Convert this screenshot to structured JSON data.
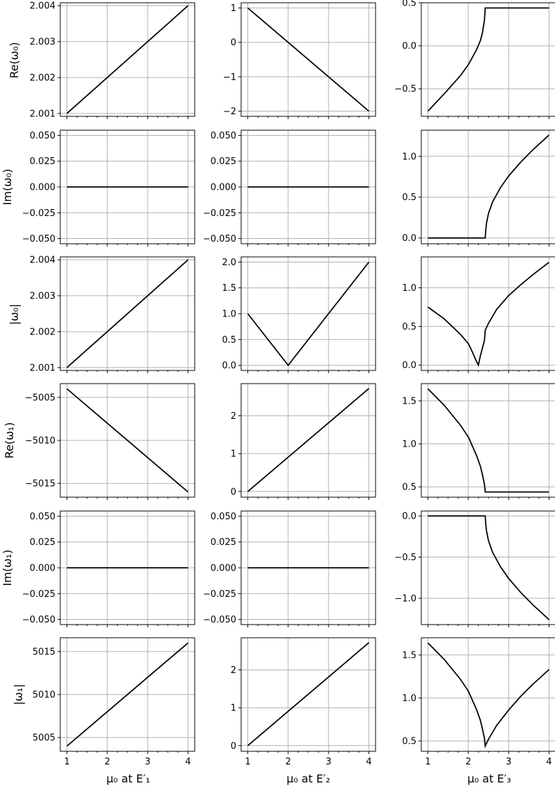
{
  "figure": {
    "row_labels": [
      "Re(ω₀)",
      "Im(ω₀)",
      "|ω₀|",
      "Re(ω₁)",
      "Im(ω₁)",
      "|ω₁|"
    ],
    "col_labels": [
      "μ₀ at E′₁",
      "μ₀ at E′₂",
      "μ₀ at E′₃"
    ]
  },
  "chart_data": [
    {
      "type": "line",
      "row": 0,
      "col": 0,
      "ylabel": "Re(ω₀)",
      "xlim": [
        1,
        4
      ],
      "xticks": [
        1,
        2,
        3,
        4
      ],
      "ylim": [
        2.00092,
        2.00408
      ],
      "yticks": [
        2.001,
        2.002,
        2.003,
        2.004
      ],
      "yticklabels": [
        "2.001",
        "2.002",
        "2.003",
        "2.004"
      ],
      "grid": true,
      "x": [
        1,
        4
      ],
      "y": [
        2.001,
        2.004
      ]
    },
    {
      "type": "line",
      "row": 0,
      "col": 1,
      "xlim": [
        1,
        4
      ],
      "xticks": [
        1,
        2,
        3,
        4
      ],
      "ylim": [
        -2.15,
        1.15
      ],
      "yticks": [
        -2,
        -1,
        0,
        1
      ],
      "yticklabels": [
        "−2",
        "−1",
        "0",
        "1"
      ],
      "grid": true,
      "x": [
        1,
        4
      ],
      "y": [
        1,
        -2
      ]
    },
    {
      "type": "line",
      "row": 0,
      "col": 2,
      "xlim": [
        1,
        4
      ],
      "xticks": [
        1,
        2,
        3,
        4
      ],
      "ylim": [
        -0.82,
        0.5
      ],
      "yticks": [
        -0.5,
        0.0,
        0.5
      ],
      "yticklabels": [
        "−0.5",
        "0.0",
        "0.5"
      ],
      "grid": true,
      "x": [
        1,
        1.4,
        1.8,
        2.0,
        2.2,
        2.3,
        2.35,
        2.4,
        2.42,
        4
      ],
      "y": [
        -0.76,
        -0.56,
        -0.35,
        -0.22,
        -0.05,
        0.06,
        0.15,
        0.3,
        0.44,
        0.44
      ]
    },
    {
      "type": "line",
      "row": 1,
      "col": 0,
      "ylabel": "Im(ω₀)",
      "xlim": [
        1,
        4
      ],
      "xticks": [
        1,
        2,
        3,
        4
      ],
      "ylim": [
        -0.055,
        0.055
      ],
      "yticks": [
        -0.05,
        -0.025,
        0.0,
        0.025,
        0.05
      ],
      "yticklabels": [
        "−0.050",
        "−0.025",
        "0.000",
        "0.025",
        "0.050"
      ],
      "grid": true,
      "x": [
        1,
        4
      ],
      "y": [
        0,
        0
      ]
    },
    {
      "type": "line",
      "row": 1,
      "col": 1,
      "xlim": [
        1,
        4
      ],
      "xticks": [
        1,
        2,
        3,
        4
      ],
      "ylim": [
        -0.055,
        0.055
      ],
      "yticks": [
        -0.05,
        -0.025,
        0.0,
        0.025,
        0.05
      ],
      "yticklabels": [
        "−0.050",
        "−0.025",
        "0.000",
        "0.025",
        "0.050"
      ],
      "grid": true,
      "x": [
        1,
        4
      ],
      "y": [
        0,
        0
      ]
    },
    {
      "type": "line",
      "row": 1,
      "col": 2,
      "xlim": [
        1,
        4
      ],
      "xticks": [
        1,
        2,
        3,
        4
      ],
      "ylim": [
        -0.07,
        1.32
      ],
      "yticks": [
        0.0,
        0.5,
        1.0
      ],
      "yticklabels": [
        "0.0",
        "0.5",
        "1.0"
      ],
      "grid": true,
      "x": [
        1,
        2.42,
        2.43,
        2.45,
        2.5,
        2.6,
        2.8,
        3.0,
        3.3,
        3.6,
        4.0
      ],
      "y": [
        0,
        0,
        0.08,
        0.18,
        0.3,
        0.44,
        0.62,
        0.76,
        0.93,
        1.08,
        1.26
      ]
    },
    {
      "type": "line",
      "row": 2,
      "col": 0,
      "ylabel": "|ω₀|",
      "xlim": [
        1,
        4
      ],
      "xticks": [
        1,
        2,
        3,
        4
      ],
      "ylim": [
        2.00092,
        2.00408
      ],
      "yticks": [
        2.001,
        2.002,
        2.003,
        2.004
      ],
      "yticklabels": [
        "2.001",
        "2.002",
        "2.003",
        "2.004"
      ],
      "grid": true,
      "x": [
        1,
        4
      ],
      "y": [
        2.001,
        2.004
      ]
    },
    {
      "type": "line",
      "row": 2,
      "col": 1,
      "xlim": [
        1,
        4
      ],
      "xticks": [
        1,
        2,
        3,
        4
      ],
      "ylim": [
        -0.1,
        2.1
      ],
      "yticks": [
        0,
        0.5,
        1,
        1.5,
        2
      ],
      "yticklabels": [
        "0.0",
        "0.5",
        "1.0",
        "1.5",
        "2.0"
      ],
      "grid": true,
      "x": [
        1,
        2,
        4
      ],
      "y": [
        1,
        0,
        2
      ]
    },
    {
      "type": "line",
      "row": 2,
      "col": 2,
      "xlim": [
        1,
        4
      ],
      "xticks": [
        1,
        2,
        3,
        4
      ],
      "ylim": [
        -0.07,
        1.4
      ],
      "yticks": [
        0.0,
        0.5,
        1.0
      ],
      "yticklabels": [
        "0.0",
        "0.5",
        "1.0"
      ],
      "grid": true,
      "x": [
        1,
        1.4,
        1.8,
        2.0,
        2.1,
        2.2,
        2.25,
        2.3,
        2.35,
        2.4,
        2.42,
        2.5,
        2.7,
        3.0,
        3.3,
        3.6,
        4.0
      ],
      "y": [
        0.75,
        0.6,
        0.4,
        0.28,
        0.17,
        0.05,
        0.0,
        0.12,
        0.22,
        0.32,
        0.45,
        0.54,
        0.72,
        0.9,
        1.04,
        1.17,
        1.33
      ]
    },
    {
      "type": "line",
      "row": 3,
      "col": 0,
      "ylabel": "Re(ω₁)",
      "xlim": [
        1,
        4
      ],
      "xticks": [
        1,
        2,
        3,
        4
      ],
      "ylim": [
        -5016.6,
        -5003.4
      ],
      "yticks": [
        -5015,
        -5010,
        -5005
      ],
      "yticklabels": [
        "−5015",
        "−5010",
        "−5005"
      ],
      "grid": true,
      "x": [
        1,
        4
      ],
      "y": [
        -5004,
        -5016
      ]
    },
    {
      "type": "line",
      "row": 3,
      "col": 1,
      "xlim": [
        1,
        4
      ],
      "xticks": [
        1,
        2,
        3,
        4
      ],
      "ylim": [
        -0.15,
        2.85
      ],
      "yticks": [
        0,
        1,
        2
      ],
      "yticklabels": [
        "0",
        "1",
        "2"
      ],
      "grid": true,
      "x": [
        1,
        4
      ],
      "y": [
        0,
        2.72
      ]
    },
    {
      "type": "line",
      "row": 3,
      "col": 2,
      "xlim": [
        1,
        4
      ],
      "xticks": [
        1,
        2,
        3,
        4
      ],
      "ylim": [
        0.38,
        1.7
      ],
      "yticks": [
        0.5,
        1.0,
        1.5
      ],
      "yticklabels": [
        "0.5",
        "1.0",
        "1.5"
      ],
      "grid": true,
      "x": [
        1,
        1.4,
        1.8,
        2.0,
        2.2,
        2.3,
        2.35,
        2.4,
        2.42,
        4
      ],
      "y": [
        1.64,
        1.45,
        1.22,
        1.08,
        0.87,
        0.74,
        0.64,
        0.53,
        0.44,
        0.44
      ]
    },
    {
      "type": "line",
      "row": 4,
      "col": 0,
      "ylabel": "Im(ω₁)",
      "xlim": [
        1,
        4
      ],
      "xticks": [
        1,
        2,
        3,
        4
      ],
      "ylim": [
        -0.055,
        0.055
      ],
      "yticks": [
        -0.05,
        -0.025,
        0.0,
        0.025,
        0.05
      ],
      "yticklabels": [
        "−0.050",
        "−0.025",
        "0.000",
        "0.025",
        "0.050"
      ],
      "grid": true,
      "x": [
        1,
        4
      ],
      "y": [
        0,
        0
      ]
    },
    {
      "type": "line",
      "row": 4,
      "col": 1,
      "xlim": [
        1,
        4
      ],
      "xticks": [
        1,
        2,
        3,
        4
      ],
      "ylim": [
        -0.055,
        0.055
      ],
      "yticks": [
        -0.05,
        -0.025,
        0.0,
        0.025,
        0.05
      ],
      "yticklabels": [
        "−0.050",
        "−0.025",
        "0.000",
        "0.025",
        "0.050"
      ],
      "grid": true,
      "x": [
        1,
        4
      ],
      "y": [
        0,
        0
      ]
    },
    {
      "type": "line",
      "row": 4,
      "col": 2,
      "xlim": [
        1,
        4
      ],
      "xticks": [
        1,
        2,
        3,
        4
      ],
      "ylim": [
        -1.32,
        0.06
      ],
      "yticks": [
        -1.0,
        -0.5,
        0.0
      ],
      "yticklabels": [
        "−1.0",
        "−0.5",
        "0.0"
      ],
      "grid": true,
      "x": [
        1,
        2.42,
        2.43,
        2.45,
        2.5,
        2.6,
        2.8,
        3.0,
        3.3,
        3.6,
        4.0
      ],
      "y": [
        0,
        0,
        -0.08,
        -0.18,
        -0.3,
        -0.44,
        -0.62,
        -0.76,
        -0.93,
        -1.08,
        -1.26
      ]
    },
    {
      "type": "line",
      "row": 5,
      "col": 0,
      "ylabel": "|ω₁|",
      "xlim": [
        1,
        4
      ],
      "xticks": [
        1,
        2,
        3,
        4
      ],
      "ylim": [
        5003.4,
        5016.6
      ],
      "yticks": [
        5005,
        5010,
        5015
      ],
      "yticklabels": [
        "5005",
        "5010",
        "5015"
      ],
      "grid": true,
      "x": [
        1,
        4
      ],
      "y": [
        5004,
        5016
      ]
    },
    {
      "type": "line",
      "row": 5,
      "col": 1,
      "xlim": [
        1,
        4
      ],
      "xticks": [
        1,
        2,
        3,
        4
      ],
      "ylim": [
        -0.15,
        2.85
      ],
      "yticks": [
        0,
        1,
        2
      ],
      "yticklabels": [
        "0",
        "1",
        "2"
      ],
      "grid": true,
      "x": [
        1,
        4
      ],
      "y": [
        0,
        2.72
      ]
    },
    {
      "type": "line",
      "row": 5,
      "col": 2,
      "xlim": [
        1,
        4
      ],
      "xticks": [
        1,
        2,
        3,
        4
      ],
      "ylim": [
        0.38,
        1.7
      ],
      "yticks": [
        0.5,
        1.0,
        1.5
      ],
      "yticklabels": [
        "0.5",
        "1.0",
        "1.5"
      ],
      "grid": true,
      "x": [
        1,
        1.4,
        1.8,
        2.0,
        2.2,
        2.3,
        2.35,
        2.4,
        2.42,
        2.5,
        2.7,
        3.0,
        3.3,
        3.6,
        4.0
      ],
      "y": [
        1.64,
        1.45,
        1.22,
        1.08,
        0.87,
        0.74,
        0.64,
        0.53,
        0.44,
        0.52,
        0.68,
        0.86,
        1.02,
        1.16,
        1.33
      ]
    }
  ]
}
